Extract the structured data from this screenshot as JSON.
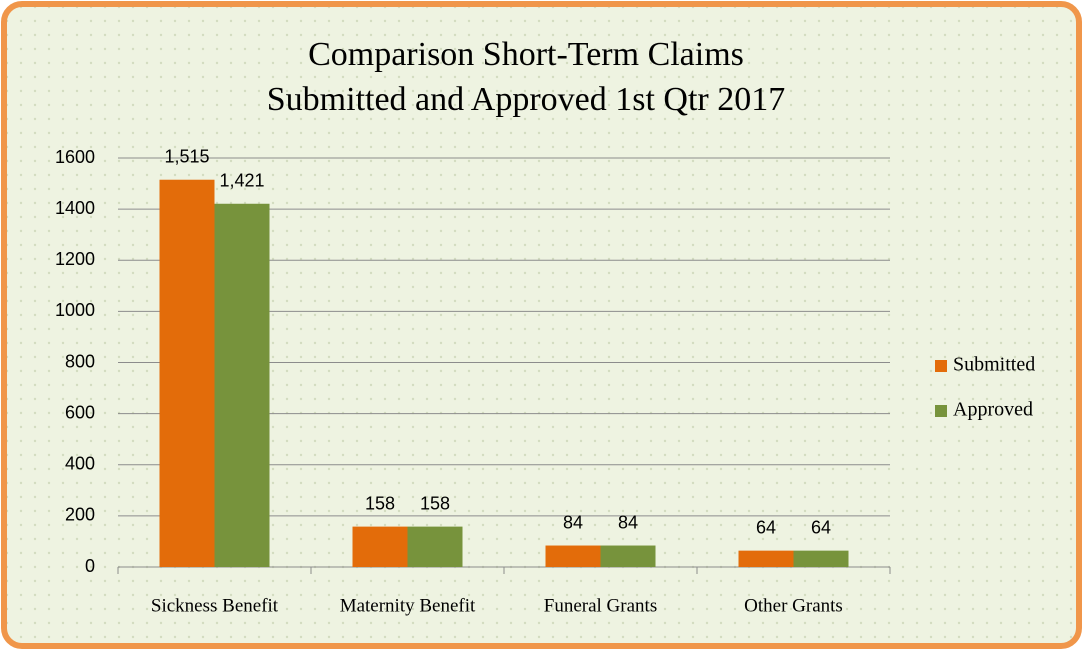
{
  "chart_data": {
    "type": "bar",
    "title": [
      "Comparison Short-Term Claims",
      "Submitted and Approved 1st Qtr 2017"
    ],
    "categories": [
      "Sickness Benefit",
      "Maternity Benefit",
      "Funeral Grants",
      "Other Grants"
    ],
    "series": [
      {
        "name": "Submitted",
        "color": "#e36c0a",
        "values": [
          1515,
          158,
          84,
          64
        ],
        "value_labels": [
          "1,515",
          "158",
          "84",
          "64"
        ]
      },
      {
        "name": "Approved",
        "color": "#77933c",
        "values": [
          1421,
          158,
          84,
          64
        ],
        "value_labels": [
          "1,421",
          "158",
          "84",
          "64"
        ]
      }
    ],
    "ylim": [
      0,
      1600
    ],
    "yticks": [
      0,
      200,
      400,
      600,
      800,
      1000,
      1200,
      1400,
      1600
    ],
    "grid": true,
    "legend": "right"
  }
}
